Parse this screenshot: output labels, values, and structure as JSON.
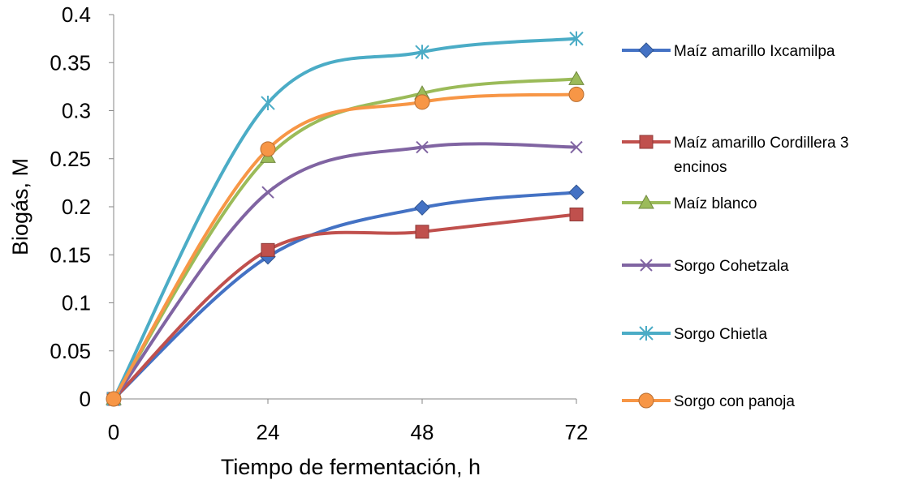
{
  "chart_data": {
    "type": "line",
    "title": "",
    "xlabel": "Tiempo de fermentación, h",
    "ylabel": "Biogás, M",
    "x": [
      0,
      24,
      48,
      72
    ],
    "xlim": [
      0,
      72
    ],
    "ylim": [
      0,
      0.4
    ],
    "yticks": [
      "0",
      "0.05",
      "0.1",
      "0.15",
      "0.2",
      "0.25",
      "0.3",
      "0.35",
      "0.4"
    ],
    "xticks": [
      "0",
      "24",
      "48",
      "72"
    ],
    "grid": false,
    "legend": "right",
    "series": [
      {
        "name": "Maíz amarillo Ixcamilpa",
        "values": [
          0,
          0.148,
          0.199,
          0.215
        ],
        "color": "#4472C4",
        "marker": "diamond"
      },
      {
        "name": "Maíz amarillo Cordillera 3 encinos",
        "values": [
          0,
          0.155,
          0.174,
          0.192
        ],
        "color": "#C0504D",
        "marker": "square"
      },
      {
        "name": "Maíz blanco",
        "values": [
          0,
          0.252,
          0.318,
          0.333
        ],
        "color": "#9BBB59",
        "marker": "triangle"
      },
      {
        "name": "Sorgo Cohetzala",
        "values": [
          0,
          0.215,
          0.262,
          0.262
        ],
        "color": "#8064A2",
        "marker": "x"
      },
      {
        "name": "Sorgo Chietla",
        "values": [
          0,
          0.308,
          0.361,
          0.375
        ],
        "color": "#4BACC6",
        "marker": "star"
      },
      {
        "name": "Sorgo con panoja",
        "values": [
          0,
          0.26,
          0.309,
          0.317
        ],
        "color": "#F79646",
        "marker": "circle"
      }
    ]
  }
}
